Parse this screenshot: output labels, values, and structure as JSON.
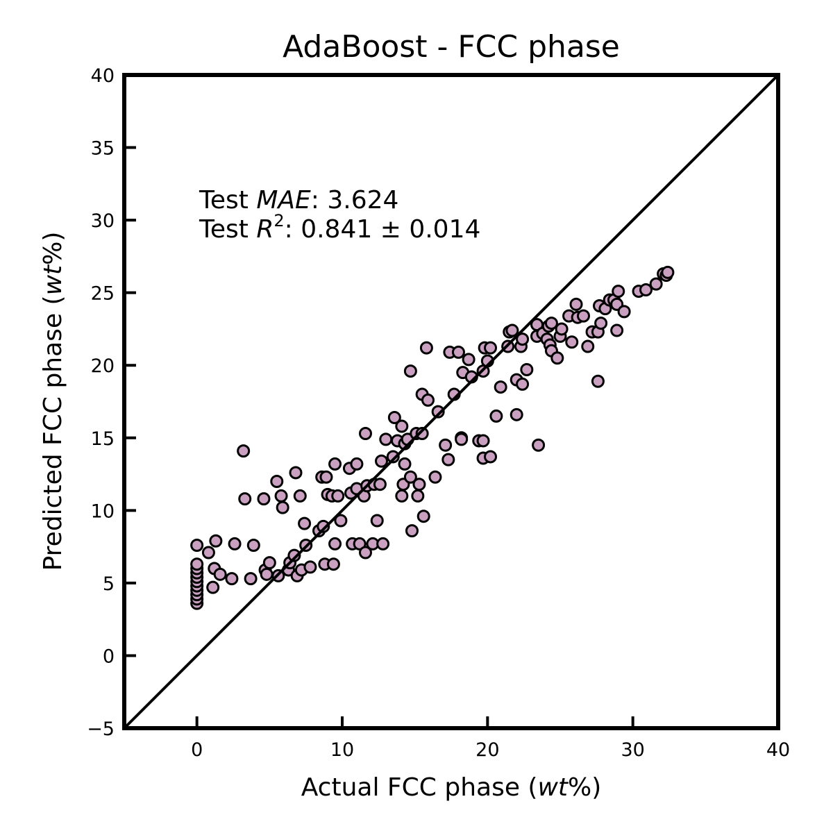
{
  "chart_data": {
    "type": "scatter",
    "title": "AdaBoost - FCC phase",
    "xlabel_pre": "Actual FCC phase (",
    "xlabel_it": "wt",
    "xlabel_post": "%)",
    "ylabel_pre": "Predicted FCC phase (",
    "ylabel_it": "wt",
    "ylabel_post": "%)",
    "xlim": [
      -5,
      40
    ],
    "ylim": [
      -5,
      40
    ],
    "xticks": [
      0,
      10,
      20,
      30,
      40
    ],
    "yticks": [
      -5,
      0,
      5,
      10,
      15,
      20,
      25,
      30,
      35,
      40
    ],
    "reference_line": "y = x",
    "grid": false,
    "marker_color": "#c9a0c0",
    "marker_edge": "#000000",
    "line_color": "#000000",
    "annotation": {
      "mae_prefix": "Test ",
      "mae_label": "MAE",
      "mae_value": ": 3.624",
      "r2_prefix": "Test ",
      "r2_label": "R",
      "r2_sup": "2",
      "r2_value": ": 0.841 ± 0.014"
    },
    "points": [
      [
        0,
        3.6
      ],
      [
        0,
        3.9
      ],
      [
        0,
        4.2
      ],
      [
        0,
        4.5
      ],
      [
        0,
        4.8
      ],
      [
        0,
        5.1
      ],
      [
        0,
        5.4
      ],
      [
        0,
        5.7
      ],
      [
        0,
        6.0
      ],
      [
        0,
        6.3
      ],
      [
        0,
        7.6
      ],
      [
        0.8,
        7.1
      ],
      [
        1.1,
        4.7
      ],
      [
        1.2,
        6.0
      ],
      [
        1.3,
        7.9
      ],
      [
        1.6,
        5.6
      ],
      [
        2.4,
        5.3
      ],
      [
        2.6,
        7.7
      ],
      [
        3.2,
        14.1
      ],
      [
        3.3,
        10.8
      ],
      [
        3.7,
        5.3
      ],
      [
        3.9,
        7.6
      ],
      [
        4.6,
        10.8
      ],
      [
        4.7,
        5.9
      ],
      [
        4.8,
        5.6
      ],
      [
        5.0,
        6.4
      ],
      [
        5.5,
        12.0
      ],
      [
        5.6,
        5.5
      ],
      [
        5.8,
        11.0
      ],
      [
        5.9,
        10.2
      ],
      [
        6.3,
        5.9
      ],
      [
        6.4,
        6.4
      ],
      [
        6.7,
        6.9
      ],
      [
        6.8,
        12.6
      ],
      [
        6.9,
        5.5
      ],
      [
        7.1,
        11.0
      ],
      [
        7.2,
        5.9
      ],
      [
        7.4,
        9.1
      ],
      [
        7.5,
        7.6
      ],
      [
        7.8,
        6.1
      ],
      [
        8.4,
        8.6
      ],
      [
        8.6,
        12.3
      ],
      [
        8.7,
        8.9
      ],
      [
        8.8,
        6.3
      ],
      [
        8.9,
        12.3
      ],
      [
        9.0,
        11.1
      ],
      [
        9.3,
        11.0
      ],
      [
        9.4,
        6.3
      ],
      [
        9.5,
        13.2
      ],
      [
        9.5,
        7.7
      ],
      [
        9.7,
        11.0
      ],
      [
        9.9,
        9.3
      ],
      [
        10.5,
        12.9
      ],
      [
        10.6,
        11.2
      ],
      [
        10.7,
        7.7
      ],
      [
        11.0,
        13.2
      ],
      [
        11.0,
        11.5
      ],
      [
        11.2,
        7.7
      ],
      [
        11.5,
        11.0
      ],
      [
        11.6,
        15.3
      ],
      [
        11.6,
        7.1
      ],
      [
        11.7,
        11.7
      ],
      [
        12.1,
        7.7
      ],
      [
        12.2,
        11.8
      ],
      [
        12.4,
        9.3
      ],
      [
        12.6,
        11.8
      ],
      [
        12.7,
        13.4
      ],
      [
        12.8,
        7.7
      ],
      [
        13.0,
        14.9
      ],
      [
        13.5,
        13.7
      ],
      [
        13.6,
        16.4
      ],
      [
        13.8,
        14.8
      ],
      [
        14.1,
        11.0
      ],
      [
        14.1,
        15.8
      ],
      [
        14.2,
        11.8
      ],
      [
        14.3,
        13.2
      ],
      [
        14.3,
        14.6
      ],
      [
        14.5,
        14.9
      ],
      [
        14.7,
        19.6
      ],
      [
        14.7,
        12.3
      ],
      [
        14.8,
        8.6
      ],
      [
        15.1,
        15.3
      ],
      [
        15.2,
        11.0
      ],
      [
        15.3,
        11.8
      ],
      [
        15.5,
        15.3
      ],
      [
        15.5,
        18.0
      ],
      [
        15.6,
        9.6
      ],
      [
        15.9,
        17.6
      ],
      [
        15.8,
        21.2
      ],
      [
        16.4,
        12.3
      ],
      [
        16.6,
        16.8
      ],
      [
        17.1,
        14.5
      ],
      [
        17.3,
        13.5
      ],
      [
        17.4,
        20.9
      ],
      [
        17.7,
        18.0
      ],
      [
        18.0,
        20.9
      ],
      [
        18.2,
        15.0
      ],
      [
        18.2,
        14.9
      ],
      [
        18.3,
        19.5
      ],
      [
        18.7,
        20.4
      ],
      [
        18.9,
        19.2
      ],
      [
        19.4,
        14.8
      ],
      [
        19.7,
        14.8
      ],
      [
        19.7,
        13.6
      ],
      [
        19.7,
        19.6
      ],
      [
        19.8,
        21.2
      ],
      [
        20.0,
        20.3
      ],
      [
        20.2,
        21.2
      ],
      [
        20.2,
        13.7
      ],
      [
        20.6,
        16.5
      ],
      [
        20.9,
        18.5
      ],
      [
        21.4,
        21.3
      ],
      [
        21.5,
        22.3
      ],
      [
        21.7,
        22.4
      ],
      [
        22.0,
        19.0
      ],
      [
        22.0,
        16.6
      ],
      [
        22.3,
        21.3
      ],
      [
        22.4,
        21.8
      ],
      [
        22.4,
        18.7
      ],
      [
        22.7,
        19.7
      ],
      [
        23.4,
        22.8
      ],
      [
        23.4,
        22.0
      ],
      [
        23.5,
        14.5
      ],
      [
        23.8,
        22.2
      ],
      [
        24.1,
        21.8
      ],
      [
        24.2,
        22.7
      ],
      [
        24.3,
        21.4
      ],
      [
        24.4,
        21.0
      ],
      [
        24.4,
        22.9
      ],
      [
        24.8,
        20.5
      ],
      [
        25.0,
        22.0
      ],
      [
        25.1,
        22.5
      ],
      [
        25.6,
        23.4
      ],
      [
        25.8,
        21.6
      ],
      [
        26.1,
        24.2
      ],
      [
        26.2,
        23.3
      ],
      [
        26.6,
        23.4
      ],
      [
        26.9,
        21.3
      ],
      [
        27.2,
        22.3
      ],
      [
        27.6,
        22.3
      ],
      [
        27.6,
        18.9
      ],
      [
        27.7,
        24.1
      ],
      [
        27.8,
        22.9
      ],
      [
        28.1,
        23.9
      ],
      [
        28.4,
        24.5
      ],
      [
        28.7,
        24.5
      ],
      [
        28.9,
        24.2
      ],
      [
        28.9,
        22.4
      ],
      [
        29.0,
        25.1
      ],
      [
        29.4,
        23.7
      ],
      [
        30.4,
        25.1
      ],
      [
        30.9,
        25.2
      ],
      [
        31.6,
        25.6
      ],
      [
        32.1,
        26.3
      ],
      [
        32.3,
        26.2
      ],
      [
        32.4,
        26.4
      ]
    ]
  }
}
